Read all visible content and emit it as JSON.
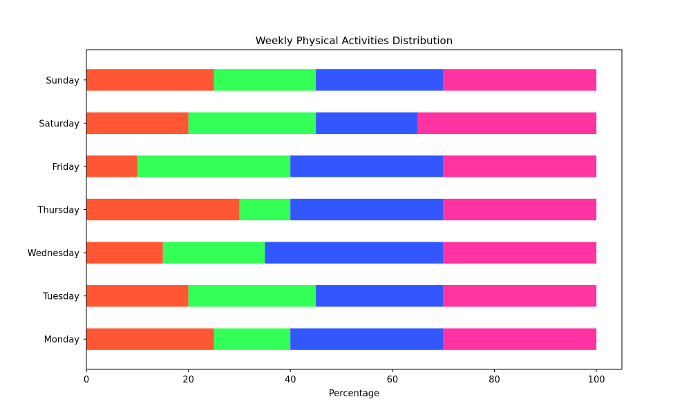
{
  "chart_data": {
    "type": "bar",
    "orientation": "horizontal",
    "stacked": true,
    "title": "Weekly Physical Activities Distribution",
    "xlabel": "Percentage",
    "ylabel": "",
    "xlim": [
      0,
      105
    ],
    "x_ticks": [
      0,
      20,
      40,
      60,
      80,
      100
    ],
    "categories": [
      "Monday",
      "Tuesday",
      "Wednesday",
      "Thursday",
      "Friday",
      "Saturday",
      "Sunday"
    ],
    "series": [
      {
        "color": "#FF5733",
        "values": [
          25,
          20,
          15,
          30,
          10,
          20,
          25
        ]
      },
      {
        "color": "#33FF57",
        "values": [
          15,
          25,
          20,
          10,
          30,
          25,
          20
        ]
      },
      {
        "color": "#3357FF",
        "values": [
          30,
          25,
          35,
          30,
          30,
          20,
          25
        ]
      },
      {
        "color": "#FF33A1",
        "values": [
          30,
          30,
          30,
          30,
          30,
          35,
          30
        ]
      }
    ],
    "grid": false,
    "legend": "none"
  }
}
